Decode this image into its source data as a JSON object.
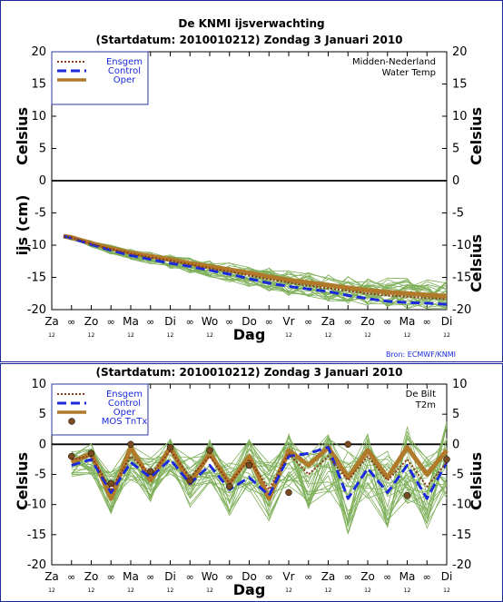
{
  "chart_data": [
    {
      "type": "line",
      "title": "De KNMI ijsverwachting",
      "subtitle": "(Startdatum: 2010010212)   Zondag    3 Januari   2010",
      "xlabel": "Dag",
      "ylabel_left_top": "Celsius",
      "ylabel_left_bottom": "ijs (cm)",
      "ylabel_right_top": "Celsius",
      "ylabel_right_bottom": "Celsius",
      "ylim": [
        -20,
        20
      ],
      "yticks": [
        20,
        15,
        10,
        5,
        0,
        -5,
        -10,
        -15,
        -20
      ],
      "xticks": [
        "Za",
        "∞",
        "Zo",
        "∞",
        "Ma",
        "∞",
        "Di",
        "∞",
        "Wo",
        "∞",
        "Do",
        "∞",
        "Vr",
        "∞",
        "Za",
        "∞",
        "Zo",
        "∞",
        "Ma",
        "∞",
        "Di"
      ],
      "xsub": [
        "12",
        "",
        "12",
        "",
        "12",
        "",
        "12",
        "",
        "12",
        "",
        "12",
        "",
        "12",
        "",
        "12",
        "",
        "12",
        "",
        "12",
        "",
        "12"
      ],
      "annotation": [
        "Midden-Nederland",
        "Water Temp"
      ],
      "source": "Bron: ECMWF/KNMI",
      "x": [
        0.6,
        1,
        2,
        3,
        4,
        5,
        6,
        7,
        8,
        9,
        10,
        11,
        12,
        13,
        14,
        15,
        16,
        17,
        18,
        19,
        20
      ],
      "series": [
        {
          "name": "Ensgem",
          "color": "#8b3a1a",
          "values": [
            -8.6,
            -8.8,
            -9.8,
            -10.6,
            -11.3,
            -11.9,
            -12.4,
            -13.0,
            -13.6,
            -14.1,
            -14.7,
            -15.3,
            -15.8,
            -16.3,
            -16.7,
            -17.1,
            -17.5,
            -17.8,
            -18.0,
            -18.2,
            -18.4
          ]
        },
        {
          "name": "Control",
          "color": "#1a2adc",
          "values": [
            -8.6,
            -8.9,
            -9.9,
            -10.8,
            -11.6,
            -12.2,
            -12.8,
            -13.3,
            -13.9,
            -14.5,
            -15.2,
            -15.9,
            -16.4,
            -16.8,
            -17.2,
            -17.8,
            -18.3,
            -18.7,
            -18.9,
            -19.0,
            -19.2
          ]
        },
        {
          "name": "Oper",
          "color": "#b07a2a",
          "values": [
            -8.6,
            -8.8,
            -9.7,
            -10.5,
            -11.2,
            -11.7,
            -12.2,
            -12.8,
            -13.3,
            -13.8,
            -14.3,
            -14.9,
            -15.4,
            -15.8,
            -16.2,
            -16.6,
            -17.0,
            -17.3,
            -17.5,
            -17.7,
            -17.9
          ]
        }
      ],
      "ensemble_spread": [
        [
          -8.4,
          -8.9
        ],
        [
          -8.6,
          -9.2
        ],
        [
          -9.3,
          -10.3
        ],
        [
          -10.0,
          -11.4
        ],
        [
          -10.6,
          -12.2
        ],
        [
          -11.1,
          -12.9
        ],
        [
          -11.5,
          -13.6
        ],
        [
          -11.9,
          -14.3
        ],
        [
          -12.3,
          -15.0
        ],
        [
          -12.7,
          -15.7
        ],
        [
          -13.1,
          -16.5
        ],
        [
          -13.5,
          -17.2
        ],
        [
          -13.9,
          -17.8
        ],
        [
          -14.2,
          -18.3
        ],
        [
          -14.5,
          -18.7
        ],
        [
          -14.7,
          -19.1
        ],
        [
          -14.9,
          -19.4
        ],
        [
          -15.0,
          -19.7
        ],
        [
          -15.1,
          -19.9
        ],
        [
          -15.2,
          -20.0
        ],
        [
          -15.3,
          -20.0
        ]
      ]
    },
    {
      "type": "line",
      "subtitle": "(Startdatum: 2010010212)   Zondag    3 Januari   2010",
      "xlabel": "Dag",
      "ylabel_left": "Celsius",
      "ylabel_right": "Celsius",
      "ylim": [
        -20,
        10
      ],
      "yticks": [
        10,
        5,
        0,
        -5,
        -10,
        -15,
        -20
      ],
      "xticks": [
        "Za",
        "∞",
        "Zo",
        "∞",
        "Ma",
        "∞",
        "Di",
        "∞",
        "Wo",
        "∞",
        "Do",
        "∞",
        "Vr",
        "∞",
        "Za",
        "∞",
        "Zo",
        "∞",
        "Ma",
        "∞",
        "Di"
      ],
      "xsub": [
        "12",
        "",
        "12",
        "",
        "12",
        "",
        "12",
        "",
        "12",
        "",
        "12",
        "",
        "12",
        "",
        "12",
        "",
        "12",
        "",
        "12",
        "",
        "12"
      ],
      "annotation": [
        "De Bilt",
        "T2m"
      ],
      "source": "Bron: ECMWF/KNMI",
      "x": [
        1,
        2,
        3,
        4,
        5,
        6,
        7,
        8,
        9,
        10,
        11,
        12,
        13,
        14,
        15,
        16,
        17,
        18,
        19,
        20
      ],
      "series": [
        {
          "name": "Ensgem",
          "color": "#8b3a1a",
          "values": [
            -2.5,
            -2.0,
            -7.5,
            -2.0,
            -5.0,
            -1.0,
            -5.5,
            -2.0,
            -6.5,
            -2.5,
            -7.5,
            -1.5,
            -5.0,
            -2.0,
            -6.0,
            -2.0,
            -6.0,
            -2.5,
            -7.0,
            -3.0
          ]
        },
        {
          "name": "Control",
          "color": "#1a2adc",
          "values": [
            -3.5,
            -2.5,
            -8.0,
            -3.0,
            -5.5,
            -2.5,
            -6.5,
            -3.5,
            -7.5,
            -5.5,
            -8.5,
            -2.0,
            -1.5,
            -0.5,
            -9.0,
            -4.0,
            -8.0,
            -3.5,
            -9.0,
            -3.0
          ]
        },
        {
          "name": "Oper",
          "color": "#b07a2a",
          "values": [
            -3.0,
            -1.5,
            -9.0,
            -0.5,
            -6.0,
            -0.5,
            -6.5,
            -1.5,
            -6.5,
            -2.0,
            -9.0,
            -1.0,
            -3.5,
            -0.5,
            -5.5,
            -1.0,
            -5.5,
            -0.5,
            -5.0,
            -1.0
          ]
        }
      ],
      "mos": {
        "name": "MOS TnTx",
        "color": "#7a4a20",
        "x": [
          1,
          2,
          3,
          4,
          5,
          6,
          7,
          8,
          9,
          10,
          12,
          15,
          18,
          20
        ],
        "values": [
          -2.0,
          -1.5,
          -6.5,
          0.0,
          -4.5,
          -0.5,
          -6.0,
          -1.0,
          -7.0,
          -3.5,
          -8.0,
          0.0,
          -8.5,
          -2.5
        ]
      },
      "ensemble_spread": [
        [
          -1.0,
          -5.5
        ],
        [
          0.5,
          -5.0
        ],
        [
          -4.5,
          -11.5
        ],
        [
          1.0,
          -6.0
        ],
        [
          -2.0,
          -9.5
        ],
        [
          1.5,
          -5.5
        ],
        [
          -2.0,
          -10.5
        ],
        [
          1.0,
          -6.5
        ],
        [
          -3.0,
          -12.0
        ],
        [
          1.0,
          -8.0
        ],
        [
          -3.0,
          -13.0
        ],
        [
          2.0,
          -7.0
        ],
        [
          -1.0,
          -11.0
        ],
        [
          2.0,
          -8.0
        ],
        [
          -1.0,
          -15.0
        ],
        [
          2.5,
          -9.0
        ],
        [
          -1.0,
          -14.0
        ],
        [
          3.0,
          -10.0
        ],
        [
          -2.0,
          -14.0
        ],
        [
          4.0,
          -9.0
        ]
      ]
    }
  ]
}
